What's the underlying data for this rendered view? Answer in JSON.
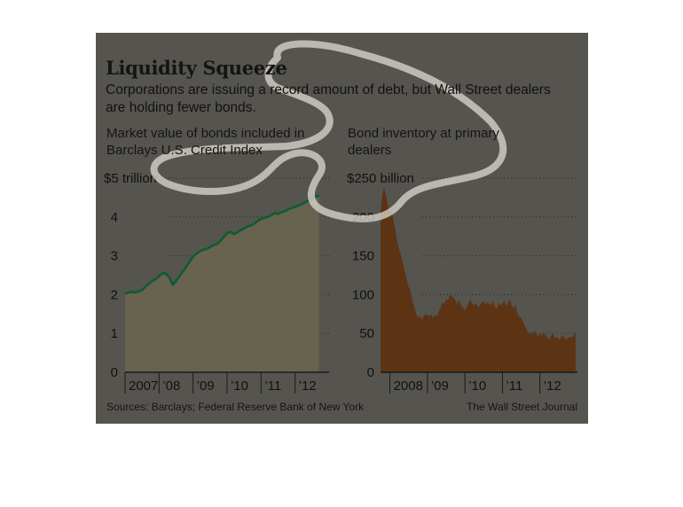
{
  "title": "Liquidity Squeeze",
  "subtitle": "Corporations are issuing a record amount of debt, but Wall Street dealers are holding fewer bonds.",
  "source": "Sources: Barclays; Federal Reserve Bank of New York",
  "credit": "The Wall Street Journal",
  "colors": {
    "panel_bg": "#56544f",
    "left_area": "#67634f",
    "left_line": "#0e5c32",
    "right_area": "#5c3414",
    "highlight": "#dcd9d0"
  },
  "chart_data": [
    {
      "type": "line",
      "title": "Market value of bonds included in Barclays U.S. Credit Index",
      "ylim": [
        0,
        5
      ],
      "yticks": [
        0,
        1,
        2,
        3,
        4,
        5
      ],
      "ytick_labels": [
        "0",
        "1",
        "2",
        "3",
        "4",
        "$5 trillion"
      ],
      "xticks": [
        2007,
        2008,
        2009,
        2010,
        2011,
        2012
      ],
      "xtick_labels": [
        "2007",
        "’08",
        "’09",
        "’10",
        "’11",
        "’12"
      ],
      "xlim": [
        2007,
        2013
      ],
      "grid": true,
      "x": [
        2007.0,
        2007.1,
        2007.2,
        2007.3,
        2007.4,
        2007.5,
        2007.6,
        2007.7,
        2007.8,
        2007.9,
        2008.0,
        2008.1,
        2008.2,
        2008.3,
        2008.4,
        2008.5,
        2008.6,
        2008.7,
        2008.8,
        2008.9,
        2009.0,
        2009.1,
        2009.2,
        2009.3,
        2009.4,
        2009.5,
        2009.6,
        2009.7,
        2009.8,
        2009.9,
        2010.0,
        2010.1,
        2010.2,
        2010.3,
        2010.4,
        2010.5,
        2010.6,
        2010.7,
        2010.8,
        2010.9,
        2011.0,
        2011.1,
        2011.2,
        2011.3,
        2011.4,
        2011.5,
        2011.6,
        2011.7,
        2011.8,
        2011.9,
        2012.0,
        2012.1,
        2012.2,
        2012.3,
        2012.4,
        2012.5,
        2012.6,
        2012.7
      ],
      "series": [
        {
          "values": [
            2.02,
            2.05,
            2.07,
            2.06,
            2.08,
            2.12,
            2.2,
            2.28,
            2.35,
            2.4,
            2.48,
            2.55,
            2.54,
            2.45,
            2.25,
            2.35,
            2.48,
            2.6,
            2.72,
            2.85,
            2.98,
            3.05,
            3.12,
            3.15,
            3.18,
            3.22,
            3.28,
            3.3,
            3.38,
            3.48,
            3.58,
            3.62,
            3.56,
            3.6,
            3.66,
            3.7,
            3.76,
            3.78,
            3.83,
            3.9,
            3.95,
            3.98,
            4.0,
            4.05,
            4.1,
            4.08,
            4.12,
            4.15,
            4.2,
            4.23,
            4.26,
            4.3,
            4.33,
            4.38,
            4.42,
            4.48,
            4.52,
            4.55
          ]
        }
      ]
    },
    {
      "type": "area",
      "title": "Bond inventory at primary dealers",
      "ylim": [
        0,
        250
      ],
      "yticks": [
        0,
        50,
        100,
        150,
        200,
        250
      ],
      "ytick_labels": [
        "0",
        "50",
        "100",
        "150",
        "200",
        "$250 billion"
      ],
      "xticks": [
        2008,
        2009,
        2010,
        2011,
        2012
      ],
      "xtick_labels": [
        "2008",
        "’09",
        "’10",
        "’11",
        "’12"
      ],
      "xlim": [
        2007.75,
        2013
      ],
      "grid": true,
      "x": [
        2007.75,
        2007.8,
        2007.85,
        2007.9,
        2007.95,
        2008.0,
        2008.05,
        2008.1,
        2008.15,
        2008.2,
        2008.25,
        2008.3,
        2008.35,
        2008.4,
        2008.45,
        2008.5,
        2008.55,
        2008.6,
        2008.65,
        2008.7,
        2008.75,
        2008.8,
        2008.85,
        2008.9,
        2008.95,
        2009.0,
        2009.05,
        2009.1,
        2009.15,
        2009.2,
        2009.25,
        2009.3,
        2009.35,
        2009.4,
        2009.45,
        2009.5,
        2009.55,
        2009.6,
        2009.65,
        2009.7,
        2009.75,
        2009.8,
        2009.85,
        2009.9,
        2009.95,
        2010.0,
        2010.05,
        2010.1,
        2010.15,
        2010.2,
        2010.25,
        2010.3,
        2010.35,
        2010.4,
        2010.45,
        2010.5,
        2010.55,
        2010.6,
        2010.65,
        2010.7,
        2010.75,
        2010.8,
        2010.85,
        2010.9,
        2010.95,
        2011.0,
        2011.05,
        2011.1,
        2011.15,
        2011.2,
        2011.25,
        2011.3,
        2011.35,
        2011.4,
        2011.45,
        2011.5,
        2011.55,
        2011.6,
        2011.65,
        2011.7,
        2011.75,
        2011.8,
        2011.85,
        2011.9,
        2011.95,
        2012.0,
        2012.05,
        2012.1,
        2012.15,
        2012.2,
        2012.25,
        2012.3,
        2012.35,
        2012.4,
        2012.45,
        2012.5,
        2012.55,
        2012.6,
        2012.65,
        2012.7,
        2012.75,
        2012.8,
        2012.85,
        2012.9,
        2012.95
      ],
      "series": [
        {
          "values": [
            205,
            230,
            238,
            226,
            213,
            208,
            206,
            195,
            182,
            168,
            158,
            150,
            140,
            130,
            120,
            110,
            105,
            92,
            85,
            75,
            70,
            73,
            68,
            72,
            75,
            74,
            72,
            75,
            70,
            74,
            72,
            78,
            83,
            90,
            88,
            95,
            92,
            100,
            98,
            96,
            92,
            88,
            93,
            85,
            83,
            80,
            84,
            90,
            94,
            88,
            86,
            90,
            84,
            86,
            90,
            92,
            87,
            90,
            88,
            86,
            93,
            84,
            82,
            90,
            86,
            88,
            92,
            85,
            90,
            94,
            86,
            82,
            88,
            76,
            72,
            70,
            65,
            60,
            55,
            50,
            52,
            48,
            54,
            50,
            46,
            50,
            48,
            52,
            47,
            45,
            42,
            47,
            50,
            44,
            46,
            42,
            44,
            48,
            45,
            42,
            44,
            46,
            45,
            48,
            52
          ]
        }
      ]
    }
  ]
}
